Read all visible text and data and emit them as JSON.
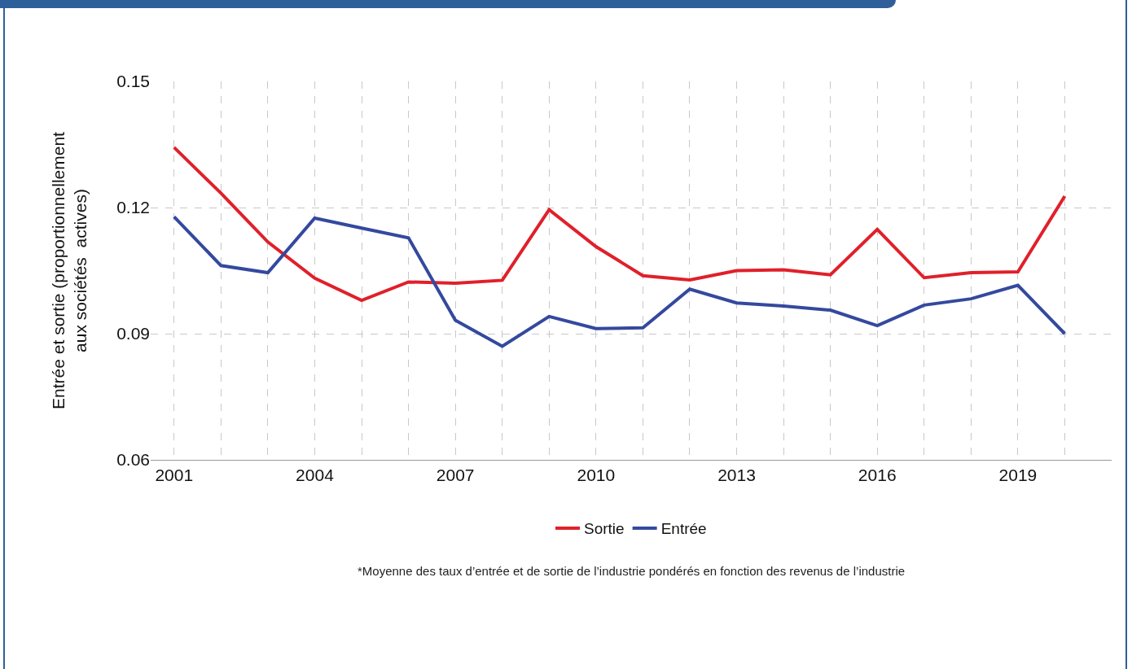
{
  "chart_data": {
    "type": "line",
    "ylabel": "Entrée et sortie (proportionnellement\naux sociétés  actives)",
    "x": [
      2001,
      2002,
      2003,
      2004,
      2005,
      2006,
      2007,
      2008,
      2009,
      2010,
      2011,
      2012,
      2013,
      2014,
      2015,
      2016,
      2017,
      2018,
      2019,
      2020
    ],
    "series": [
      {
        "name": "Sortie",
        "color": "#e0202a",
        "values": [
          0.1343,
          0.1234,
          0.1118,
          0.1032,
          0.0979,
          0.1023,
          0.102,
          0.1027,
          0.1195,
          0.1107,
          0.1038,
          0.1028,
          0.105,
          0.1052,
          0.104,
          0.1148,
          0.1033,
          0.1045,
          0.1047,
          0.1227
        ]
      },
      {
        "name": "Entrée",
        "color": "#34499e",
        "values": [
          0.1178,
          0.1062,
          0.1045,
          0.1175,
          0.1151,
          0.1128,
          0.0932,
          0.087,
          0.0941,
          0.0912,
          0.0914,
          0.1006,
          0.0973,
          0.0966,
          0.0956,
          0.0919,
          0.0968,
          0.0983,
          0.1015,
          0.09
        ]
      }
    ],
    "xlim": [
      2000.5,
      2021
    ],
    "xticks": [
      2001,
      {
        "value": 2002,
        "label": null
      },
      {
        "value": 2003,
        "label": null
      },
      2004,
      {
        "value": 2005,
        "label": null
      },
      {
        "value": 2006,
        "label": null
      },
      2007,
      {
        "value": 2008,
        "label": null
      },
      {
        "value": 2009,
        "label": null
      },
      2010,
      {
        "value": 2011,
        "label": null
      },
      {
        "value": 2012,
        "label": null
      },
      2013,
      {
        "value": 2014,
        "label": null
      },
      {
        "value": 2015,
        "label": null
      },
      2016,
      {
        "value": 2017,
        "label": null
      },
      {
        "value": 2018,
        "label": null
      },
      2019,
      {
        "value": 2020,
        "label": null
      }
    ],
    "ylim": [
      0.06,
      0.15
    ],
    "yticks": [
      0.06,
      0.09,
      0.12,
      0.15
    ],
    "grid": true,
    "legend": "bottom",
    "marker": "none",
    "line_style": "solid",
    "annotations": [
      "*Moyenne des taux d’entrée et de sortie de l’industrie pondérés en fonction des revenus de l’industrie"
    ]
  }
}
